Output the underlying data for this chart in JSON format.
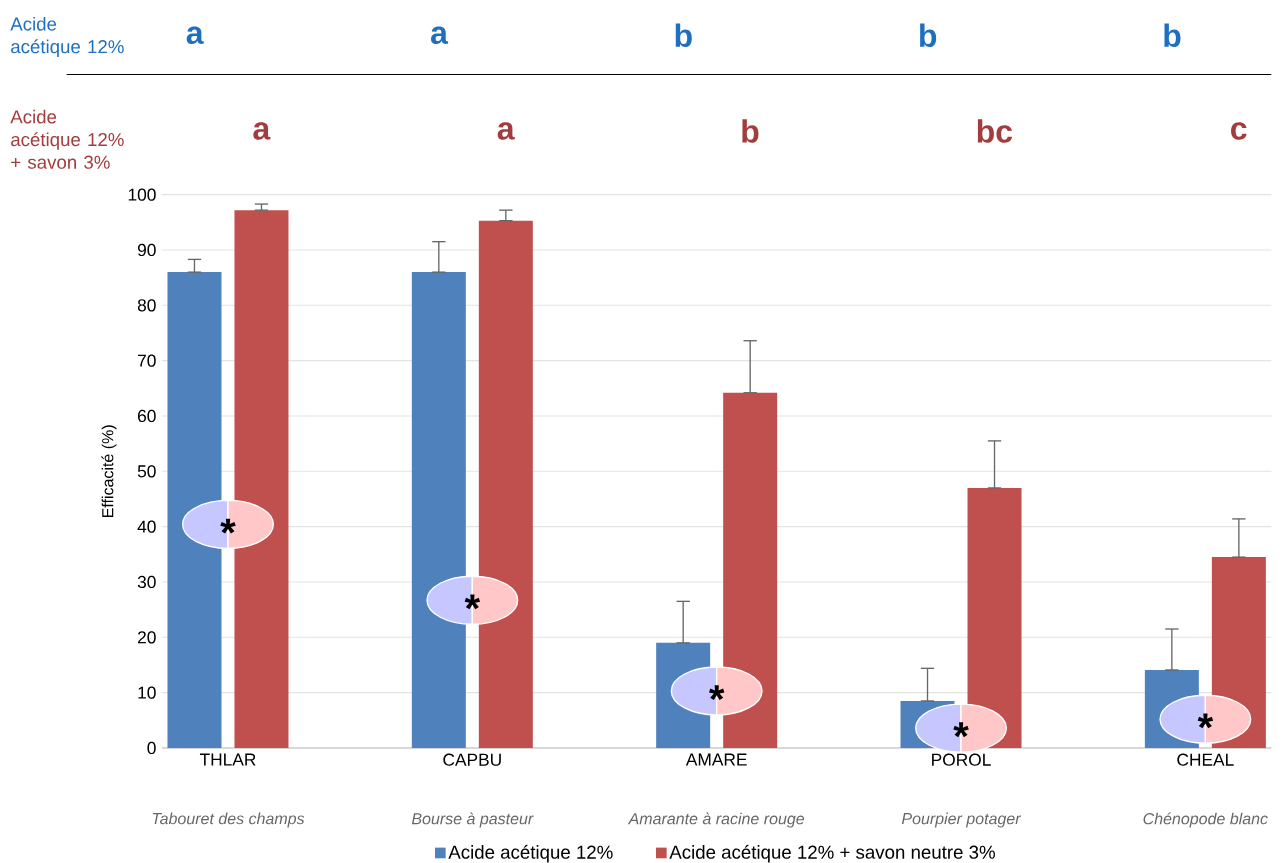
{
  "chart_data": {
    "type": "bar",
    "ylabel": "Efficacité (%)",
    "categories": [
      "THLAR",
      "CAPBU",
      "AMARE",
      "POROL",
      "CHEAL"
    ],
    "series": [
      {
        "name": "Acide acétique 12%",
        "color": "#4f81bd",
        "values": [
          86,
          86,
          19,
          8.5,
          14.1
        ],
        "errors": [
          [
            86,
            88.3
          ],
          [
            86,
            91.5
          ],
          [
            19,
            26.5
          ],
          [
            8.5,
            14.4
          ],
          [
            14.1,
            21.5
          ]
        ]
      },
      {
        "name": "Acide acétique 12% + savon neutre 3%",
        "color": "#c0504d",
        "values": [
          97.2,
          95.3,
          64.2,
          47.0,
          34.5
        ],
        "errors": [
          [
            97.2,
            98.3
          ],
          [
            95.3,
            97.2
          ],
          [
            64.2,
            73.6
          ],
          [
            47.0,
            55.5
          ],
          [
            34.5,
            41.4
          ]
        ]
      }
    ],
    "ylim": [
      0,
      100
    ],
    "yticks": [
      0,
      10,
      20,
      30,
      40,
      50,
      60,
      70,
      80,
      90,
      100
    ],
    "grid": "y",
    "legend": "bottom",
    "annotations": [
      "Acide acétique 12%",
      "Acide acétique 12% + savon 3%",
      "a",
      "a",
      "b",
      "b",
      "b",
      "a",
      "a",
      "b",
      "bc",
      "c",
      "Tabouret des champs",
      "Bourse à pasteur",
      "Amarante à racine rouge",
      "Pourpier potager",
      "Chénopode blanc",
      "*",
      "*",
      "*",
      "*",
      "*"
    ]
  }
}
